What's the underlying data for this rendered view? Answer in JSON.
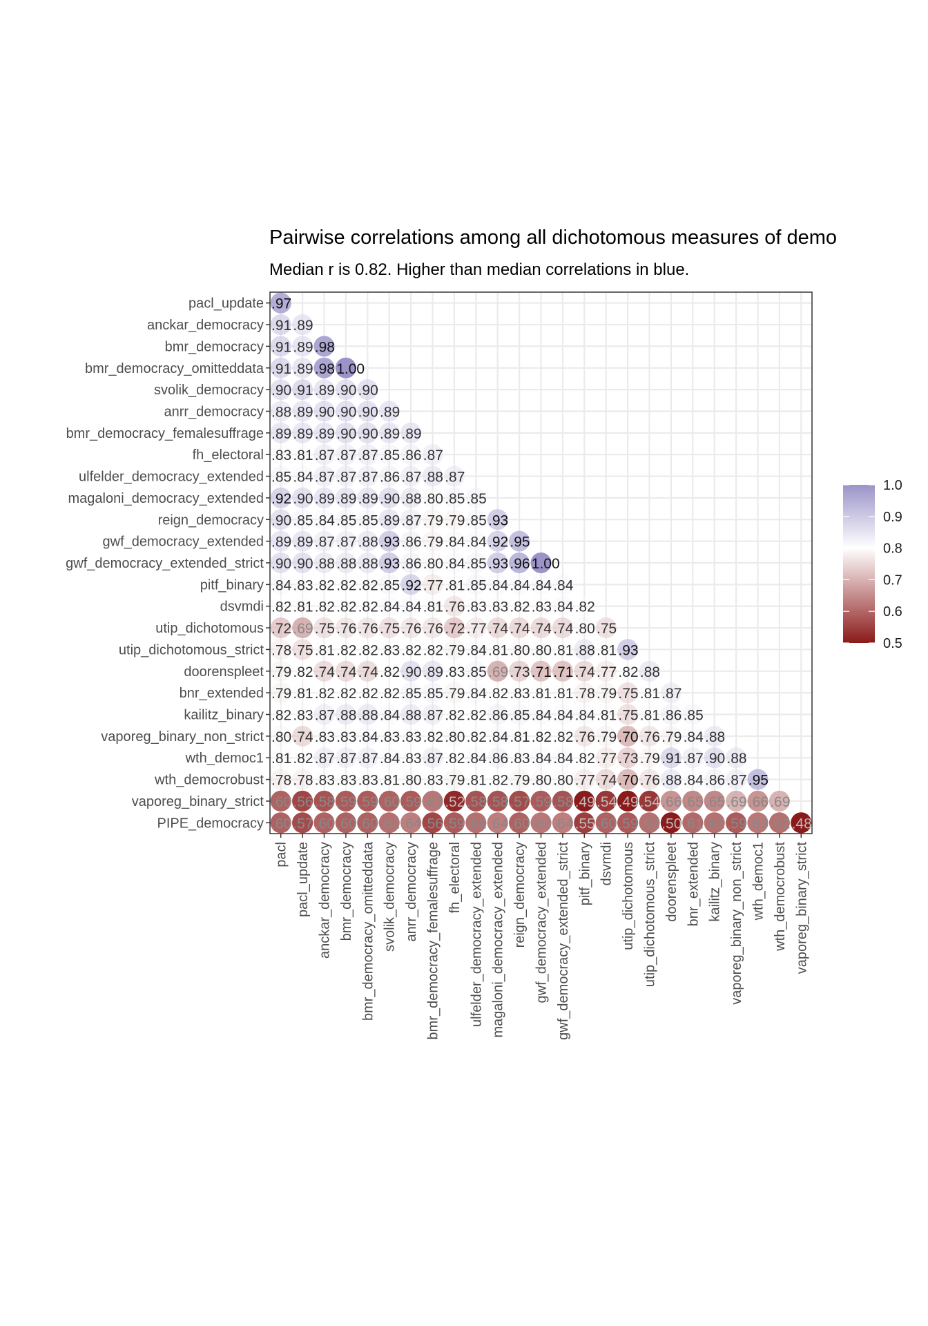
{
  "chart_data": {
    "type": "heatmap",
    "title": "Pairwise correlations among all dichotomous measures of demo",
    "subtitle": "Median r is 0.82. Higher than median correlations in blue.",
    "median": 0.82,
    "x_labels": [
      "pacl",
      "pacl_update",
      "anckar_democracy",
      "bmr_democracy",
      "bmr_democracy_omitteddata",
      "svolik_democracy",
      "anrr_democracy",
      "bmr_democracy_femalesuffrage",
      "fh_electoral",
      "ulfelder_democracy_extended",
      "magaloni_democracy_extended",
      "reign_democracy",
      "gwf_democracy_extended",
      "gwf_democracy_extended_strict",
      "pitf_binary",
      "dsvmdi",
      "utip_dichotomous",
      "utip_dichotomous_strict",
      "doorenspleet",
      "bnr_extended",
      "kailitz_binary",
      "vaporeg_binary_non_strict",
      "wth_democ1",
      "wth_democrobust",
      "vaporeg_binary_strict"
    ],
    "y_labels": [
      "pacl_update",
      "anckar_democracy",
      "bmr_democracy",
      "bmr_democracy_omitteddata",
      "svolik_democracy",
      "anrr_democracy",
      "bmr_democracy_femalesuffrage",
      "fh_electoral",
      "ulfelder_democracy_extended",
      "magaloni_democracy_extended",
      "reign_democracy",
      "gwf_democracy_extended",
      "gwf_democracy_extended_strict",
      "pitf_binary",
      "dsvmdi",
      "utip_dichotomous",
      "utip_dichotomous_strict",
      "doorenspleet",
      "bnr_extended",
      "kailitz_binary",
      "vaporeg_binary_non_strict",
      "wth_democ1",
      "wth_democrobust",
      "vaporeg_binary_strict",
      "PIPE_democracy"
    ],
    "rows": [
      [
        ".97"
      ],
      [
        ".91",
        ".89"
      ],
      [
        ".91",
        ".89",
        ".98"
      ],
      [
        ".91",
        ".89",
        ".98",
        "1.00"
      ],
      [
        ".90",
        ".91",
        ".89",
        ".90",
        ".90"
      ],
      [
        ".88",
        ".89",
        ".90",
        ".90",
        ".90",
        ".89"
      ],
      [
        ".89",
        ".89",
        ".89",
        ".90",
        ".90",
        ".89",
        ".89"
      ],
      [
        ".83",
        ".81",
        ".87",
        ".87",
        ".87",
        ".85",
        ".86",
        ".87"
      ],
      [
        ".85",
        ".84",
        ".87",
        ".87",
        ".87",
        ".86",
        ".87",
        ".88",
        ".87"
      ],
      [
        ".92",
        ".90",
        ".89",
        ".89",
        ".89",
        ".90",
        ".88",
        ".80",
        ".85",
        ".85"
      ],
      [
        ".90",
        ".85",
        ".84",
        ".85",
        ".85",
        ".89",
        ".87",
        ".79",
        ".79",
        ".85",
        ".93"
      ],
      [
        ".89",
        ".89",
        ".87",
        ".87",
        ".88",
        ".93",
        ".86",
        ".79",
        ".84",
        ".84",
        ".92",
        ".95"
      ],
      [
        ".90",
        ".90",
        ".88",
        ".88",
        ".88",
        ".93",
        ".86",
        ".80",
        ".84",
        ".85",
        ".93",
        ".96",
        "1.00"
      ],
      [
        ".84",
        ".83",
        ".82",
        ".82",
        ".82",
        ".85",
        ".92",
        ".77",
        ".81",
        ".85",
        ".84",
        ".84",
        ".84",
        ".84"
      ],
      [
        ".82",
        ".81",
        ".82",
        ".82",
        ".82",
        ".84",
        ".84",
        ".81",
        ".76",
        ".83",
        ".83",
        ".82",
        ".83",
        ".84",
        ".82"
      ],
      [
        ".72",
        ".69",
        ".75",
        ".76",
        ".76",
        ".75",
        ".76",
        ".76",
        ".72",
        ".77",
        ".74",
        ".74",
        ".74",
        ".74",
        ".80",
        ".75"
      ],
      [
        ".78",
        ".75",
        ".81",
        ".82",
        ".82",
        ".83",
        ".82",
        ".82",
        ".79",
        ".84",
        ".81",
        ".80",
        ".80",
        ".81",
        ".88",
        ".81",
        ".93"
      ],
      [
        ".79",
        ".82",
        ".74",
        ".74",
        ".74",
        ".82",
        ".90",
        ".89",
        ".83",
        ".85",
        ".69",
        ".73",
        ".71",
        ".71",
        ".74",
        ".77",
        ".82",
        ".88"
      ],
      [
        ".79",
        ".81",
        ".82",
        ".82",
        ".82",
        ".82",
        ".85",
        ".85",
        ".79",
        ".84",
        ".82",
        ".83",
        ".81",
        ".81",
        ".78",
        ".79",
        ".75",
        ".81",
        ".87"
      ],
      [
        ".82",
        ".83",
        ".87",
        ".88",
        ".88",
        ".84",
        ".88",
        ".87",
        ".82",
        ".82",
        ".86",
        ".85",
        ".84",
        ".84",
        ".84",
        ".81",
        ".75",
        ".81",
        ".86",
        ".85"
      ],
      [
        ".80",
        ".74",
        ".83",
        ".83",
        ".84",
        ".83",
        ".83",
        ".82",
        ".80",
        ".82",
        ".84",
        ".81",
        ".82",
        ".82",
        ".76",
        ".79",
        ".70",
        ".76",
        ".79",
        ".84",
        ".88"
      ],
      [
        ".81",
        ".82",
        ".87",
        ".87",
        ".87",
        ".84",
        ".83",
        ".87",
        ".82",
        ".84",
        ".86",
        ".83",
        ".84",
        ".84",
        ".82",
        ".77",
        ".73",
        ".79",
        ".91",
        ".87",
        ".90",
        ".88"
      ],
      [
        ".78",
        ".78",
        ".83",
        ".83",
        ".83",
        ".81",
        ".80",
        ".83",
        ".79",
        ".81",
        ".82",
        ".79",
        ".80",
        ".80",
        ".77",
        ".74",
        ".70",
        ".76",
        ".88",
        ".84",
        ".86",
        ".87",
        ".95"
      ],
      [
        ".60",
        ".56",
        ".58",
        ".59",
        ".59",
        ".60",
        ".59",
        ".63",
        ".52",
        ".58",
        ".58",
        ".57",
        ".59",
        ".58",
        ".49",
        ".54",
        ".49",
        ".54",
        ".66",
        ".65",
        ".65",
        ".69",
        ".66",
        ".69"
      ],
      [
        ".60",
        ".57",
        ".60",
        ".60",
        ".60",
        ".62",
        ".64",
        ".56",
        ".59",
        ".62",
        ".64",
        ".60",
        ".63",
        ".64",
        ".55",
        ".60",
        ".59",
        ".62",
        ".50",
        ".61",
        ".62",
        ".59",
        ".63",
        ".62",
        ".48"
      ]
    ],
    "legend": {
      "title": "",
      "ticks": [
        "1.0",
        "0.9",
        "0.8",
        "0.7",
        "0.6",
        "0.5"
      ],
      "range": [
        0.5,
        1.0
      ],
      "low_color": "#8b1a1a",
      "mid_color": "#ffffff",
      "high_color": "#9b94c9",
      "position": "right"
    },
    "grid": true
  }
}
